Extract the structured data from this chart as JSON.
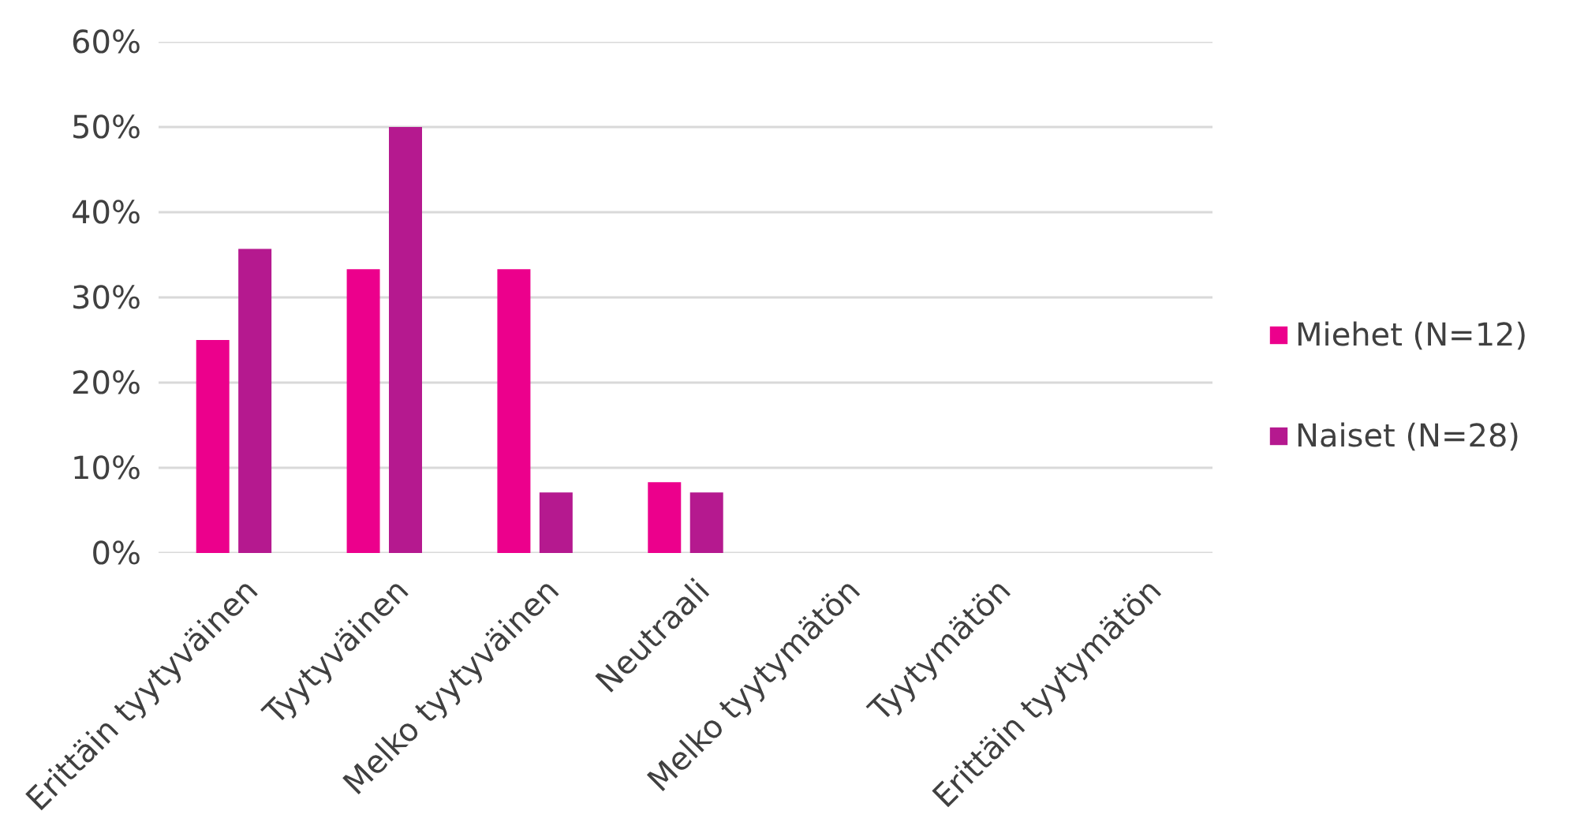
{
  "chart_data": {
    "type": "bar",
    "categories": [
      "Erittäin tyytyväinen",
      "Tyytyväinen",
      "Melko tyytyväinen",
      "Neutraali",
      "Melko tyytymätön",
      "Tyytymätön",
      "Erittäin tyytymätön"
    ],
    "series": [
      {
        "name": "Miehet (N=12)",
        "color": "#ec008c",
        "values": [
          25,
          33.3,
          33.3,
          8.3,
          0,
          0,
          0
        ]
      },
      {
        "name": "Naiset (N=28)",
        "color": "#b5198f",
        "values": [
          35.7,
          50,
          7.1,
          7.1,
          0,
          0,
          0
        ]
      }
    ],
    "ylim": [
      0,
      60
    ],
    "yticks": [
      {
        "value": 0,
        "label": "0%"
      },
      {
        "value": 10,
        "label": "10%"
      },
      {
        "value": 20,
        "label": "20%"
      },
      {
        "value": 30,
        "label": "30%"
      },
      {
        "value": 40,
        "label": "40%"
      },
      {
        "value": 50,
        "label": "50%"
      },
      {
        "value": 60,
        "label": "60%"
      }
    ],
    "grid": "y",
    "legend": "right"
  }
}
